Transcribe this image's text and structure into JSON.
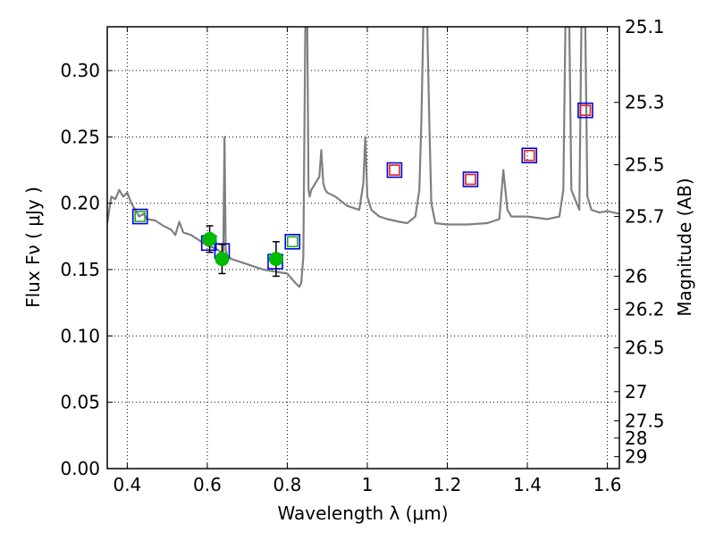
{
  "chart_data": {
    "type": "line",
    "xlabel": "Wavelength  λ (μm)",
    "ylabel": "Flux  Fν  ( μJy )",
    "ylabel_right": "Magnitude (AB)",
    "xlim": [
      0.35,
      1.63
    ],
    "ylim": [
      0.0,
      0.333
    ],
    "grid": true,
    "x_ticks": [
      0.4,
      0.6,
      0.8,
      1.0,
      1.2,
      1.4,
      1.6
    ],
    "x_tick_labels": [
      "0.4",
      "0.6",
      "0.8",
      "1",
      "1.2",
      "1.4",
      "1.6"
    ],
    "y_ticks": [
      0.0,
      0.05,
      0.1,
      0.15,
      0.2,
      0.25,
      0.3
    ],
    "y_tick_labels": [
      "0.00",
      "0.05",
      "0.10",
      "0.15",
      "0.20",
      "0.25",
      "0.30"
    ],
    "magnitude_ticks": [
      {
        "flux": 0.333,
        "label": "25.1"
      },
      {
        "flux": 0.276,
        "label": "25.3"
      },
      {
        "flux": 0.229,
        "label": "25.5"
      },
      {
        "flux": 0.19,
        "label": "25.7"
      },
      {
        "flux": 0.145,
        "label": "26"
      },
      {
        "flux": 0.12,
        "label": "26.2"
      },
      {
        "flux": 0.091,
        "label": "26.5"
      },
      {
        "flux": 0.058,
        "label": "27"
      },
      {
        "flux": 0.036,
        "label": "27.5"
      },
      {
        "flux": 0.023,
        "label": "28"
      },
      {
        "flux": 0.009,
        "label": "29"
      }
    ],
    "series": [
      {
        "kind": "line",
        "color": "#808080",
        "x": [
          0.35,
          0.36,
          0.37,
          0.38,
          0.39,
          0.4,
          0.41,
          0.42,
          0.43,
          0.44,
          0.45,
          0.47,
          0.49,
          0.51,
          0.52,
          0.53,
          0.54,
          0.56,
          0.58,
          0.6,
          0.62,
          0.64,
          0.643,
          0.646,
          0.65,
          0.66,
          0.68,
          0.7,
          0.72,
          0.74,
          0.76,
          0.78,
          0.8,
          0.82,
          0.83,
          0.835,
          0.84,
          0.845,
          0.848,
          0.85,
          0.853,
          0.856,
          0.86,
          0.87,
          0.88,
          0.885,
          0.89,
          0.895,
          0.9,
          0.92,
          0.95,
          0.98,
          0.99,
          0.995,
          1.0,
          1.01,
          1.03,
          1.05,
          1.08,
          1.1,
          1.12,
          1.13,
          1.135,
          1.14,
          1.145,
          1.15,
          1.155,
          1.16,
          1.17,
          1.2,
          1.25,
          1.3,
          1.33,
          1.34,
          1.35,
          1.36,
          1.4,
          1.45,
          1.48,
          1.49,
          1.495,
          1.5,
          1.505,
          1.51,
          1.53,
          1.535,
          1.54,
          1.545,
          1.55,
          1.56,
          1.58,
          1.6,
          1.63
        ],
        "y": [
          0.185,
          0.205,
          0.203,
          0.21,
          0.205,
          0.208,
          0.2,
          0.195,
          0.19,
          0.192,
          0.188,
          0.187,
          0.183,
          0.18,
          0.176,
          0.186,
          0.178,
          0.176,
          0.172,
          0.168,
          0.166,
          0.162,
          0.25,
          0.165,
          0.16,
          0.158,
          0.156,
          0.154,
          0.152,
          0.15,
          0.149,
          0.148,
          0.147,
          0.14,
          0.137,
          0.14,
          0.16,
          0.333,
          0.333,
          0.333,
          0.21,
          0.205,
          0.21,
          0.215,
          0.22,
          0.24,
          0.215,
          0.21,
          0.208,
          0.205,
          0.198,
          0.195,
          0.215,
          0.25,
          0.205,
          0.195,
          0.19,
          0.188,
          0.186,
          0.185,
          0.19,
          0.21,
          0.26,
          0.333,
          0.333,
          0.333,
          0.26,
          0.2,
          0.185,
          0.184,
          0.184,
          0.185,
          0.188,
          0.225,
          0.195,
          0.19,
          0.19,
          0.188,
          0.19,
          0.21,
          0.333,
          0.333,
          0.333,
          0.21,
          0.195,
          0.333,
          0.333,
          0.333,
          0.205,
          0.195,
          0.193,
          0.194,
          0.192
        ]
      },
      {
        "kind": "markers",
        "marker": "square",
        "stroke": "#0000dd",
        "points": [
          {
            "x": 0.432,
            "y": 0.19
          },
          {
            "x": 0.604,
            "y": 0.17
          },
          {
            "x": 0.637,
            "y": 0.164
          },
          {
            "x": 0.77,
            "y": 0.156
          },
          {
            "x": 0.813,
            "y": 0.171
          },
          {
            "x": 1.068,
            "y": 0.225
          },
          {
            "x": 1.258,
            "y": 0.218
          },
          {
            "x": 1.405,
            "y": 0.236
          },
          {
            "x": 1.545,
            "y": 0.27
          }
        ]
      },
      {
        "kind": "markers",
        "marker": "square",
        "stroke": "#22aa22",
        "points": [
          {
            "x": 0.432,
            "y": 0.19
          },
          {
            "x": 0.813,
            "y": 0.171
          }
        ]
      },
      {
        "kind": "markers",
        "marker": "square",
        "stroke": "#dd2222",
        "points": [
          {
            "x": 1.068,
            "y": 0.225
          },
          {
            "x": 1.258,
            "y": 0.218
          },
          {
            "x": 1.405,
            "y": 0.236
          },
          {
            "x": 1.545,
            "y": 0.27
          }
        ]
      },
      {
        "kind": "errorbar-points",
        "marker": "circle",
        "fill": "#00bb00",
        "points": [
          {
            "x": 0.606,
            "y": 0.173,
            "yerr": 0.01
          },
          {
            "x": 0.637,
            "y": 0.158,
            "yerr": 0.011
          },
          {
            "x": 0.772,
            "y": 0.158,
            "yerr": 0.013
          }
        ]
      }
    ]
  }
}
